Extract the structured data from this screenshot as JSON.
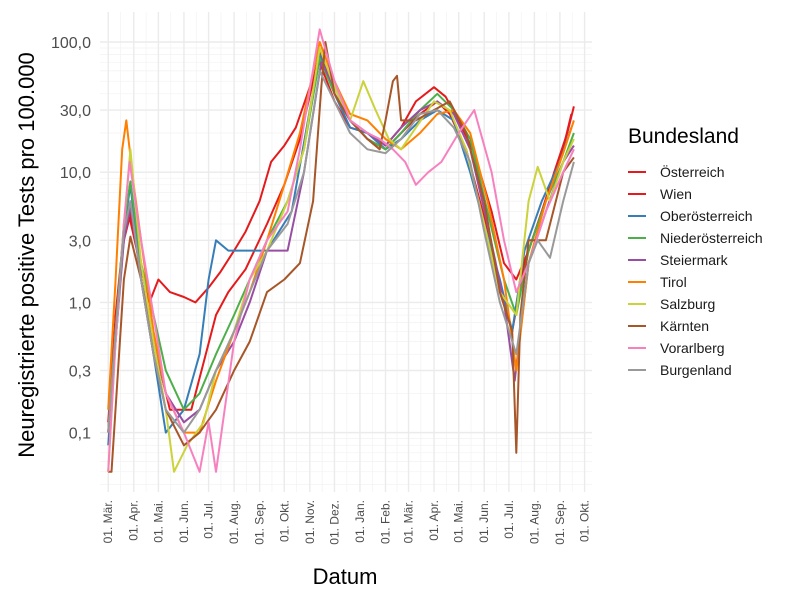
{
  "chart_data": {
    "type": "line",
    "title": "",
    "xlabel": "Datum",
    "ylabel": "Neuregistrierte positive Tests pro 100.000",
    "y_scale": "log10",
    "ylim": [
      0.035,
      170
    ],
    "y_ticks": [
      0.1,
      0.3,
      1,
      3,
      10,
      30,
      100
    ],
    "y_tick_labels": [
      "0,1",
      "0,3",
      "1,0",
      "3,0",
      "10,0",
      "30,0",
      "100,0"
    ],
    "x_ticks": [
      "2020-03-01",
      "2020-04-01",
      "2020-05-01",
      "2020-06-01",
      "2020-07-01",
      "2020-08-01",
      "2020-09-01",
      "2020-10-01",
      "2020-11-01",
      "2020-12-01",
      "2021-01-01",
      "2021-02-01",
      "2021-03-01",
      "2021-04-01",
      "2021-05-01",
      "2021-06-01",
      "2021-07-01",
      "2021-08-01",
      "2021-09-01",
      "2021-10-01"
    ],
    "x_tick_labels": [
      "01. Mär.",
      "01. Apr.",
      "01. Mai.",
      "01. Jun.",
      "01. Jul.",
      "01. Aug.",
      "01. Sep.",
      "01. Okt.",
      "01. Nov.",
      "01. Dez.",
      "01. Jan.",
      "01. Feb.",
      "01. Mär.",
      "01. Apr.",
      "01. Mai.",
      "01. Jun.",
      "01. Jul.",
      "01. Aug.",
      "01. Sep.",
      "01. Okt."
    ],
    "xlim": [
      "2020-02-20",
      "2021-10-10"
    ],
    "grid": true,
    "legend_title": "Bundesland",
    "legend_position": "right",
    "series": [
      {
        "name": "Österreich",
        "color": "#E41A1C",
        "x": [
          "2020-03-01",
          "2020-03-10",
          "2020-03-20",
          "2020-03-27",
          "2020-04-10",
          "2020-04-25",
          "2020-05-15",
          "2020-06-10",
          "2020-07-10",
          "2020-07-25",
          "2020-08-15",
          "2020-09-10",
          "2020-10-01",
          "2020-10-20",
          "2020-11-05",
          "2020-11-13",
          "2020-12-01",
          "2020-12-20",
          "2021-01-10",
          "2021-02-01",
          "2021-02-20",
          "2021-03-15",
          "2021-04-05",
          "2021-04-20",
          "2021-05-10",
          "2021-06-01",
          "2021-06-20",
          "2021-07-05",
          "2021-07-20",
          "2021-08-10",
          "2021-09-01",
          "2021-09-15"
        ],
        "y": [
          0.1,
          0.8,
          3.5,
          5.0,
          2.0,
          0.5,
          0.15,
          0.15,
          0.8,
          1.2,
          1.8,
          4.0,
          8.0,
          18,
          50,
          85,
          40,
          25,
          18,
          15,
          20,
          28,
          35,
          28,
          15,
          4.5,
          1.2,
          0.6,
          2.0,
          5.0,
          12,
          28
        ]
      },
      {
        "name": "Wien",
        "color": "#E41A1C",
        "x": [
          "2020-03-01",
          "2020-03-10",
          "2020-03-20",
          "2020-03-27",
          "2020-04-10",
          "2020-04-20",
          "2020-05-01",
          "2020-05-15",
          "2020-06-01",
          "2020-06-15",
          "2020-07-01",
          "2020-07-15",
          "2020-08-01",
          "2020-08-15",
          "2020-09-01",
          "2020-09-15",
          "2020-10-01",
          "2020-10-15",
          "2020-11-01",
          "2020-11-13",
          "2020-12-01",
          "2020-12-20",
          "2021-01-10",
          "2021-02-01",
          "2021-02-20",
          "2021-03-10",
          "2021-04-01",
          "2021-04-15",
          "2021-05-01",
          "2021-05-20",
          "2021-06-10",
          "2021-06-25",
          "2021-07-10",
          "2021-07-25",
          "2021-08-10",
          "2021-08-25",
          "2021-09-10",
          "2021-09-18"
        ],
        "y": [
          0.12,
          0.7,
          3.0,
          4.5,
          1.8,
          1.0,
          1.5,
          1.2,
          1.1,
          1.0,
          1.3,
          1.7,
          2.5,
          3.5,
          6.0,
          12,
          16,
          22,
          45,
          70,
          35,
          22,
          20,
          16,
          22,
          35,
          45,
          38,
          25,
          14,
          5.0,
          2.0,
          1.5,
          2.5,
          5.0,
          10,
          20,
          32
        ]
      },
      {
        "name": "Oberösterreich",
        "color": "#377EB8",
        "x": [
          "2020-03-01",
          "2020-03-10",
          "2020-03-20",
          "2020-03-28",
          "2020-04-10",
          "2020-04-25",
          "2020-05-10",
          "2020-06-01",
          "2020-06-20",
          "2020-07-01",
          "2020-07-10",
          "2020-07-25",
          "2020-08-15",
          "2020-09-10",
          "2020-10-10",
          "2020-11-01",
          "2020-11-13",
          "2020-12-01",
          "2020-12-20",
          "2021-01-10",
          "2021-02-01",
          "2021-02-20",
          "2021-03-15",
          "2021-04-05",
          "2021-04-25",
          "2021-05-15",
          "2021-06-01",
          "2021-06-20",
          "2021-07-05",
          "2021-07-20",
          "2021-08-10",
          "2021-09-01",
          "2021-09-15"
        ],
        "y": [
          0.08,
          0.5,
          3.5,
          8.0,
          1.5,
          0.4,
          0.1,
          0.15,
          0.4,
          1.5,
          3.0,
          2.5,
          2.5,
          2.5,
          5.0,
          30,
          80,
          40,
          22,
          20,
          15,
          18,
          25,
          30,
          25,
          10,
          4.0,
          1.5,
          0.6,
          2.5,
          6.0,
          12,
          22
        ]
      },
      {
        "name": "Niederösterreich",
        "color": "#4DAF4A",
        "x": [
          "2020-03-01",
          "2020-03-10",
          "2020-03-20",
          "2020-03-28",
          "2020-04-10",
          "2020-04-25",
          "2020-05-10",
          "2020-06-01",
          "2020-06-20",
          "2020-07-10",
          "2020-08-01",
          "2020-08-20",
          "2020-09-10",
          "2020-10-05",
          "2020-10-25",
          "2020-11-13",
          "2020-12-01",
          "2020-12-20",
          "2021-01-10",
          "2021-02-01",
          "2021-02-20",
          "2021-03-15",
          "2021-04-05",
          "2021-04-25",
          "2021-05-15",
          "2021-06-05",
          "2021-06-25",
          "2021-07-10",
          "2021-07-25",
          "2021-08-15",
          "2021-09-05",
          "2021-09-18"
        ],
        "y": [
          0.1,
          0.6,
          4.0,
          8.5,
          2.0,
          0.8,
          0.3,
          0.15,
          0.2,
          0.4,
          0.8,
          1.5,
          3.0,
          6.0,
          15,
          75,
          40,
          25,
          18,
          15,
          20,
          30,
          40,
          30,
          18,
          5.0,
          1.5,
          0.8,
          2.5,
          6.0,
          12,
          20
        ]
      },
      {
        "name": "Steiermark",
        "color": "#984EA3",
        "x": [
          "2020-03-01",
          "2020-03-10",
          "2020-03-20",
          "2020-03-28",
          "2020-04-10",
          "2020-04-25",
          "2020-05-10",
          "2020-06-01",
          "2020-06-20",
          "2020-07-10",
          "2020-08-01",
          "2020-08-20",
          "2020-09-10",
          "2020-10-05",
          "2020-10-25",
          "2020-11-15",
          "2020-12-01",
          "2020-12-20",
          "2021-01-10",
          "2021-02-01",
          "2021-02-20",
          "2021-03-15",
          "2021-04-05",
          "2021-04-25",
          "2021-05-15",
          "2021-06-05",
          "2021-06-25",
          "2021-07-08",
          "2021-07-25",
          "2021-08-15",
          "2021-09-05",
          "2021-09-18"
        ],
        "y": [
          0.1,
          0.5,
          3.0,
          5.5,
          1.5,
          0.5,
          0.2,
          0.12,
          0.15,
          0.3,
          0.5,
          1.0,
          2.5,
          2.5,
          10,
          70,
          45,
          25,
          20,
          16,
          22,
          30,
          35,
          28,
          15,
          4.0,
          1.0,
          0.25,
          2.0,
          5.0,
          12,
          16
        ]
      },
      {
        "name": "Tirol",
        "color": "#FF7F00",
        "x": [
          "2020-03-01",
          "2020-03-10",
          "2020-03-18",
          "2020-03-23",
          "2020-04-01",
          "2020-04-10",
          "2020-04-25",
          "2020-05-10",
          "2020-06-01",
          "2020-06-20",
          "2020-07-10",
          "2020-08-01",
          "2020-08-20",
          "2020-09-10",
          "2020-10-01",
          "2020-10-20",
          "2020-11-13",
          "2020-12-01",
          "2020-12-20",
          "2021-01-10",
          "2021-02-01",
          "2021-02-20",
          "2021-03-15",
          "2021-04-05",
          "2021-04-25",
          "2021-05-15",
          "2021-06-05",
          "2021-06-25",
          "2021-07-10",
          "2021-07-25",
          "2021-08-15",
          "2021-09-05",
          "2021-09-18"
        ],
        "y": [
          0.15,
          1.5,
          15,
          25,
          8.0,
          3.0,
          0.6,
          0.2,
          0.1,
          0.1,
          0.25,
          0.6,
          1.2,
          3.0,
          8.0,
          20,
          100,
          50,
          28,
          25,
          18,
          15,
          20,
          28,
          30,
          20,
          6.0,
          1.5,
          0.3,
          2.0,
          6.0,
          14,
          25
        ]
      },
      {
        "name": "Salzburg",
        "color": "#CBD23A",
        "x": [
          "2020-03-01",
          "2020-03-10",
          "2020-03-20",
          "2020-03-28",
          "2020-04-10",
          "2020-04-25",
          "2020-05-10",
          "2020-05-20",
          "2020-06-05",
          "2020-06-25",
          "2020-07-10",
          "2020-08-01",
          "2020-08-20",
          "2020-09-10",
          "2020-10-05",
          "2020-10-25",
          "2020-11-13",
          "2020-12-01",
          "2020-12-20",
          "2021-01-05",
          "2021-01-20",
          "2021-02-05",
          "2021-02-20",
          "2021-03-10",
          "2021-04-01",
          "2021-04-20",
          "2021-05-10",
          "2021-06-01",
          "2021-06-20",
          "2021-07-10",
          "2021-07-25",
          "2021-08-05",
          "2021-08-20",
          "2021-09-05",
          "2021-09-18"
        ],
        "y": [
          0.05,
          0.5,
          4.0,
          15,
          2.0,
          0.5,
          0.15,
          0.05,
          0.08,
          0.12,
          0.3,
          0.6,
          1.5,
          2.5,
          6.0,
          15,
          90,
          45,
          25,
          50,
          30,
          18,
          15,
          22,
          35,
          30,
          15,
          4.0,
          1.2,
          0.8,
          6.0,
          11,
          6.0,
          12,
          18
        ]
      },
      {
        "name": "Kärnten",
        "color": "#A65628",
        "x": [
          "2020-03-01",
          "2020-03-05",
          "2020-03-20",
          "2020-03-28",
          "2020-04-10",
          "2020-04-25",
          "2020-05-10",
          "2020-06-01",
          "2020-06-20",
          "2020-07-10",
          "2020-08-01",
          "2020-08-20",
          "2020-09-10",
          "2020-10-01",
          "2020-10-20",
          "2020-11-05",
          "2020-11-15",
          "2020-11-20",
          "2020-12-01",
          "2020-12-20",
          "2021-01-10",
          "2021-01-25",
          "2021-02-01",
          "2021-02-10",
          "2021-02-15",
          "2021-02-20",
          "2021-03-10",
          "2021-04-01",
          "2021-04-20",
          "2021-05-10",
          "2021-06-01",
          "2021-06-20",
          "2021-07-05",
          "2021-07-10",
          "2021-07-15",
          "2021-07-25",
          "2021-08-15",
          "2021-09-05",
          "2021-09-18"
        ],
        "y": [
          0.05,
          0.05,
          1.5,
          3.2,
          1.5,
          0.4,
          0.15,
          0.08,
          0.1,
          0.15,
          0.3,
          0.5,
          1.2,
          1.5,
          2.0,
          6.0,
          45,
          100,
          40,
          25,
          18,
          15,
          25,
          50,
          55,
          25,
          25,
          30,
          35,
          20,
          6.0,
          1.2,
          0.6,
          0.07,
          0.8,
          3.0,
          3.0,
          10,
          13
        ]
      },
      {
        "name": "Vorarlberg",
        "color": "#F781BF",
        "x": [
          "2020-03-01",
          "2020-03-10",
          "2020-03-20",
          "2020-03-27",
          "2020-04-10",
          "2020-04-25",
          "2020-05-10",
          "2020-06-01",
          "2020-06-20",
          "2020-07-01",
          "2020-07-10",
          "2020-08-01",
          "2020-08-20",
          "2020-09-10",
          "2020-10-05",
          "2020-10-20",
          "2020-11-13",
          "2020-12-01",
          "2020-12-20",
          "2021-01-10",
          "2021-01-25",
          "2021-02-10",
          "2021-02-25",
          "2021-03-10",
          "2021-03-25",
          "2021-04-10",
          "2021-05-01",
          "2021-05-20",
          "2021-06-10",
          "2021-06-25",
          "2021-07-10",
          "2021-07-25",
          "2021-08-15",
          "2021-09-05",
          "2021-09-18"
        ],
        "y": [
          0.05,
          0.5,
          4.0,
          12,
          3.0,
          0.8,
          0.2,
          0.1,
          0.05,
          0.12,
          0.05,
          0.5,
          1.5,
          3.0,
          5.0,
          15,
          125,
          50,
          25,
          20,
          18,
          15,
          12,
          8.0,
          10,
          12,
          20,
          30,
          10,
          3.0,
          1.2,
          2.0,
          5.0,
          10,
          15
        ]
      },
      {
        "name": "Burgenland",
        "color": "#999999",
        "x": [
          "2020-03-01",
          "2020-03-10",
          "2020-03-20",
          "2020-03-28",
          "2020-04-10",
          "2020-04-25",
          "2020-05-10",
          "2020-06-01",
          "2020-06-20",
          "2020-07-10",
          "2020-08-01",
          "2020-08-20",
          "2020-09-10",
          "2020-10-05",
          "2020-10-25",
          "2020-11-13",
          "2020-12-01",
          "2020-12-20",
          "2021-01-10",
          "2021-02-01",
          "2021-02-20",
          "2021-03-15",
          "2021-04-05",
          "2021-04-25",
          "2021-05-15",
          "2021-06-01",
          "2021-06-20",
          "2021-07-10",
          "2021-07-25",
          "2021-08-05",
          "2021-08-20",
          "2021-09-05",
          "2021-09-18"
        ],
        "y": [
          0.1,
          0.6,
          3.5,
          6.0,
          1.5,
          0.4,
          0.15,
          0.1,
          0.15,
          0.3,
          0.6,
          1.2,
          2.5,
          4.0,
          10,
          60,
          35,
          20,
          15,
          14,
          18,
          28,
          30,
          22,
          12,
          3.5,
          1.0,
          0.4,
          2.0,
          3.0,
          2.2,
          6.0,
          12
        ]
      }
    ]
  }
}
